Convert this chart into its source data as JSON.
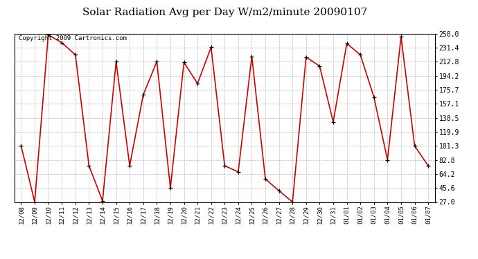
{
  "title": "Solar Radiation Avg per Day W/m2/minute 20090107",
  "copyright_text": "Copyright 2009 Cartronics.com",
  "x_labels": [
    "12/08",
    "12/09",
    "12/10",
    "12/11",
    "12/12",
    "12/13",
    "12/14",
    "12/15",
    "12/16",
    "12/17",
    "12/18",
    "12/19",
    "12/20",
    "12/21",
    "12/22",
    "12/23",
    "12/24",
    "12/25",
    "12/26",
    "12/27",
    "12/28",
    "12/29",
    "12/30",
    "12/31",
    "01/01",
    "01/02",
    "01/03",
    "01/04",
    "01/05",
    "01/06",
    "01/07"
  ],
  "y_values": [
    101.3,
    27.0,
    248.5,
    238.0,
    222.0,
    75.0,
    28.5,
    213.0,
    75.0,
    169.0,
    213.0,
    45.6,
    212.0,
    184.0,
    232.0,
    75.0,
    67.0,
    220.0,
    57.5,
    42.0,
    27.0,
    219.0,
    207.0,
    133.0,
    237.0,
    222.0,
    166.0,
    82.8,
    246.0,
    101.3,
    75.0
  ],
  "y_ticks": [
    27.0,
    45.6,
    64.2,
    82.8,
    101.3,
    119.9,
    138.5,
    157.1,
    175.7,
    194.2,
    212.8,
    231.4,
    250.0
  ],
  "line_color": "#cc0000",
  "marker_color": "#000000",
  "background_color": "#ffffff",
  "grid_color": "#bbbbbb",
  "title_fontsize": 11,
  "copyright_fontsize": 6.5,
  "tick_fontsize": 6.5,
  "ytick_fontsize": 7.0
}
